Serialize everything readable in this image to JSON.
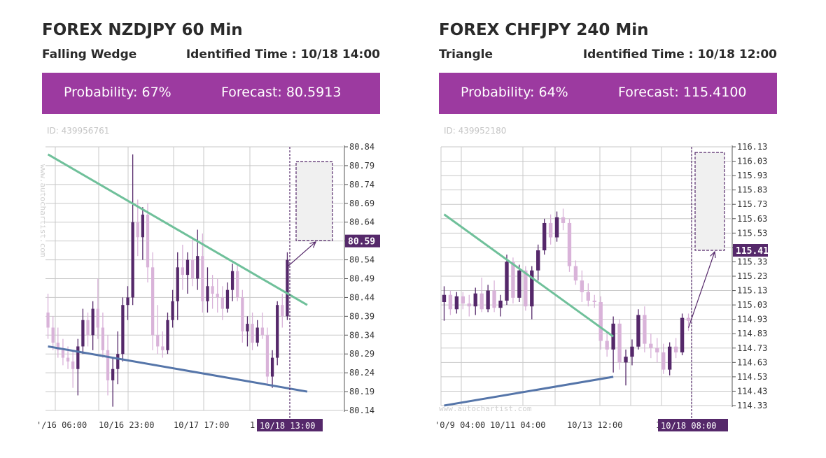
{
  "colors": {
    "banner": "#9c3aa0",
    "candle_up": "#d9b3d9",
    "candle_down": "#55286a",
    "resistance_line": "#6fc09a",
    "support_line": "#5575a9",
    "highlight_label": "#55286a",
    "grid": "#c8c8c8"
  },
  "chart_data": [
    {
      "type": "candlestick",
      "title": "FOREX NZDJPY 60 Min",
      "pattern": "Falling Wedge",
      "identified_time": "Identified Time : 10/18 14:00",
      "probability_label": "Probability: 67%",
      "forecast_label": "Forecast: 80.5913",
      "id_label": "ID: 439956761",
      "watermark": "www.autochartist.com",
      "ylim": [
        80.14,
        80.84
      ],
      "y_ticks": [
        "80.84",
        "80.79",
        "80.74",
        "80.69",
        "80.64",
        "80.59",
        "80.54",
        "80.49",
        "80.44",
        "80.39",
        "80.34",
        "80.29",
        "80.24",
        "80.19",
        "80.14"
      ],
      "highlight_price": "80.59",
      "x_ticks": [
        "'/16 06:00",
        "10/16 23:00",
        "10/17 17:00",
        "1"
      ],
      "highlight_time": "10/18 13:00",
      "forecast_value": 80.5913,
      "resistance_line": [
        [
          0,
          80.82
        ],
        [
          52,
          80.42
        ]
      ],
      "support_line": [
        [
          0,
          80.31
        ],
        [
          52,
          80.19
        ]
      ],
      "candles": [
        {
          "o": 80.4,
          "h": 80.45,
          "l": 80.33,
          "c": 80.36
        },
        {
          "o": 80.36,
          "h": 80.39,
          "l": 80.3,
          "c": 80.32
        },
        {
          "o": 80.32,
          "h": 80.36,
          "l": 80.28,
          "c": 80.3
        },
        {
          "o": 80.3,
          "h": 80.33,
          "l": 80.26,
          "c": 80.28
        },
        {
          "o": 80.28,
          "h": 80.31,
          "l": 80.25,
          "c": 80.27
        },
        {
          "o": 80.27,
          "h": 80.3,
          "l": 80.2,
          "c": 80.25
        },
        {
          "o": 80.25,
          "h": 80.33,
          "l": 80.18,
          "c": 80.31
        },
        {
          "o": 80.31,
          "h": 80.41,
          "l": 80.29,
          "c": 80.38
        },
        {
          "o": 80.38,
          "h": 80.4,
          "l": 80.31,
          "c": 80.34
        },
        {
          "o": 80.34,
          "h": 80.43,
          "l": 80.3,
          "c": 80.41
        },
        {
          "o": 80.41,
          "h": 80.49,
          "l": 80.33,
          "c": 80.36
        },
        {
          "o": 80.36,
          "h": 80.4,
          "l": 80.28,
          "c": 80.3
        },
        {
          "o": 80.3,
          "h": 80.34,
          "l": 80.18,
          "c": 80.22
        },
        {
          "o": 80.22,
          "h": 80.28,
          "l": 80.15,
          "c": 80.25
        },
        {
          "o": 80.25,
          "h": 80.35,
          "l": 80.21,
          "c": 80.29
        },
        {
          "o": 80.29,
          "h": 80.44,
          "l": 80.27,
          "c": 80.42
        },
        {
          "o": 80.42,
          "h": 80.47,
          "l": 80.38,
          "c": 80.44
        },
        {
          "o": 80.44,
          "h": 80.82,
          "l": 80.42,
          "c": 80.64
        },
        {
          "o": 80.64,
          "h": 80.7,
          "l": 80.55,
          "c": 80.6
        },
        {
          "o": 80.6,
          "h": 80.68,
          "l": 80.54,
          "c": 80.66
        },
        {
          "o": 80.66,
          "h": 80.69,
          "l": 80.48,
          "c": 80.52
        },
        {
          "o": 80.52,
          "h": 80.56,
          "l": 80.3,
          "c": 80.34
        },
        {
          "o": 80.34,
          "h": 80.42,
          "l": 80.29,
          "c": 80.31
        },
        {
          "o": 80.31,
          "h": 80.35,
          "l": 80.28,
          "c": 80.3
        },
        {
          "o": 80.3,
          "h": 80.4,
          "l": 80.29,
          "c": 80.38
        },
        {
          "o": 80.38,
          "h": 80.46,
          "l": 80.36,
          "c": 80.43
        },
        {
          "o": 80.43,
          "h": 80.56,
          "l": 80.38,
          "c": 80.52
        },
        {
          "o": 80.52,
          "h": 80.58,
          "l": 80.46,
          "c": 80.5
        },
        {
          "o": 80.5,
          "h": 80.56,
          "l": 80.45,
          "c": 80.54
        },
        {
          "o": 80.54,
          "h": 80.6,
          "l": 80.47,
          "c": 80.49
        },
        {
          "o": 80.49,
          "h": 80.62,
          "l": 80.46,
          "c": 80.55
        },
        {
          "o": 80.55,
          "h": 80.61,
          "l": 80.4,
          "c": 80.43
        },
        {
          "o": 80.43,
          "h": 80.52,
          "l": 80.4,
          "c": 80.47
        },
        {
          "o": 80.47,
          "h": 80.5,
          "l": 80.41,
          "c": 80.45
        },
        {
          "o": 80.45,
          "h": 80.49,
          "l": 80.4,
          "c": 80.44
        },
        {
          "o": 80.44,
          "h": 80.47,
          "l": 80.38,
          "c": 80.41
        },
        {
          "o": 80.41,
          "h": 80.48,
          "l": 80.4,
          "c": 80.46
        },
        {
          "o": 80.46,
          "h": 80.53,
          "l": 80.43,
          "c": 80.51
        },
        {
          "o": 80.51,
          "h": 80.53,
          "l": 80.43,
          "c": 80.44
        },
        {
          "o": 80.44,
          "h": 80.46,
          "l": 80.32,
          "c": 80.35
        },
        {
          "o": 80.35,
          "h": 80.39,
          "l": 80.31,
          "c": 80.37
        },
        {
          "o": 80.37,
          "h": 80.4,
          "l": 80.3,
          "c": 80.32
        },
        {
          "o": 80.32,
          "h": 80.38,
          "l": 80.31,
          "c": 80.36
        },
        {
          "o": 80.36,
          "h": 80.4,
          "l": 80.33,
          "c": 80.34
        },
        {
          "o": 80.34,
          "h": 80.36,
          "l": 80.21,
          "c": 80.23
        },
        {
          "o": 80.23,
          "h": 80.3,
          "l": 80.2,
          "c": 80.28
        },
        {
          "o": 80.28,
          "h": 80.43,
          "l": 80.26,
          "c": 80.42
        },
        {
          "o": 80.42,
          "h": 80.45,
          "l": 80.36,
          "c": 80.39
        },
        {
          "o": 80.39,
          "h": 80.56,
          "l": 80.38,
          "c": 80.54
        }
      ]
    },
    {
      "type": "candlestick",
      "title": "FOREX CHFJPY 240 Min",
      "pattern": "Triangle",
      "identified_time": "Identified Time : 10/18 12:00",
      "probability_label": "Probability: 64%",
      "forecast_label": "Forecast: 115.4100",
      "id_label": "ID: 439952180",
      "watermark": "www.autochartist.com",
      "ylim": [
        114.33,
        116.13
      ],
      "y_ticks": [
        "116.13",
        "116.03",
        "115.93",
        "115.83",
        "115.73",
        "115.63",
        "115.53",
        "115.43",
        "115.33",
        "115.23",
        "115.13",
        "115.03",
        "114.93",
        "114.83",
        "114.73",
        "114.63",
        "114.53",
        "114.43",
        "114.33"
      ],
      "highlight_price": "115.41",
      "x_ticks": [
        "'0/9 04:00",
        "10/11 04:00",
        "10/13 12:00",
        "1"
      ],
      "highlight_time": "10/18 08:00",
      "forecast_value": 115.41,
      "resistance_line": [
        [
          0,
          115.66
        ],
        [
          27,
          114.81
        ]
      ],
      "support_line": [
        [
          0,
          114.33
        ],
        [
          27,
          114.53
        ]
      ],
      "candles": [
        {
          "o": 115.05,
          "h": 115.16,
          "l": 114.92,
          "c": 115.1
        },
        {
          "o": 115.1,
          "h": 115.13,
          "l": 114.96,
          "c": 115.0
        },
        {
          "o": 115.0,
          "h": 115.12,
          "l": 114.97,
          "c": 115.09
        },
        {
          "o": 115.09,
          "h": 115.12,
          "l": 115.0,
          "c": 115.04
        },
        {
          "o": 115.04,
          "h": 115.1,
          "l": 114.95,
          "c": 115.02
        },
        {
          "o": 115.02,
          "h": 115.15,
          "l": 114.96,
          "c": 115.11
        },
        {
          "o": 115.11,
          "h": 115.22,
          "l": 114.98,
          "c": 115.0
        },
        {
          "o": 115.0,
          "h": 115.17,
          "l": 114.98,
          "c": 115.13
        },
        {
          "o": 115.13,
          "h": 115.2,
          "l": 114.98,
          "c": 115.01
        },
        {
          "o": 115.01,
          "h": 115.1,
          "l": 114.95,
          "c": 115.06
        },
        {
          "o": 115.06,
          "h": 115.38,
          "l": 115.03,
          "c": 115.33
        },
        {
          "o": 115.33,
          "h": 115.36,
          "l": 115.04,
          "c": 115.08
        },
        {
          "o": 115.08,
          "h": 115.31,
          "l": 115.05,
          "c": 115.27
        },
        {
          "o": 115.27,
          "h": 115.3,
          "l": 114.99,
          "c": 115.02
        },
        {
          "o": 115.02,
          "h": 115.3,
          "l": 114.93,
          "c": 115.27
        },
        {
          "o": 115.27,
          "h": 115.45,
          "l": 115.2,
          "c": 115.41
        },
        {
          "o": 115.41,
          "h": 115.63,
          "l": 115.38,
          "c": 115.6
        },
        {
          "o": 115.6,
          "h": 115.66,
          "l": 115.45,
          "c": 115.5
        },
        {
          "o": 115.5,
          "h": 115.68,
          "l": 115.47,
          "c": 115.64
        },
        {
          "o": 115.64,
          "h": 115.7,
          "l": 115.55,
          "c": 115.6
        },
        {
          "o": 115.6,
          "h": 115.63,
          "l": 115.26,
          "c": 115.3
        },
        {
          "o": 115.3,
          "h": 115.34,
          "l": 115.17,
          "c": 115.2
        },
        {
          "o": 115.2,
          "h": 115.27,
          "l": 115.05,
          "c": 115.12
        },
        {
          "o": 115.12,
          "h": 115.18,
          "l": 115.02,
          "c": 115.06
        },
        {
          "o": 115.06,
          "h": 115.1,
          "l": 115.01,
          "c": 115.05
        },
        {
          "o": 115.05,
          "h": 115.09,
          "l": 114.72,
          "c": 114.78
        },
        {
          "o": 114.78,
          "h": 114.84,
          "l": 114.67,
          "c": 114.72
        },
        {
          "o": 114.72,
          "h": 114.95,
          "l": 114.56,
          "c": 114.9
        },
        {
          "o": 114.9,
          "h": 114.93,
          "l": 114.58,
          "c": 114.63
        },
        {
          "o": 114.63,
          "h": 114.72,
          "l": 114.47,
          "c": 114.67
        },
        {
          "o": 114.67,
          "h": 114.79,
          "l": 114.61,
          "c": 114.74
        },
        {
          "o": 114.74,
          "h": 115.0,
          "l": 114.72,
          "c": 114.96
        },
        {
          "o": 114.96,
          "h": 115.02,
          "l": 114.7,
          "c": 114.76
        },
        {
          "o": 114.76,
          "h": 114.83,
          "l": 114.66,
          "c": 114.73
        },
        {
          "o": 114.73,
          "h": 114.8,
          "l": 114.63,
          "c": 114.7
        },
        {
          "o": 114.7,
          "h": 114.76,
          "l": 114.55,
          "c": 114.58
        },
        {
          "o": 114.58,
          "h": 114.77,
          "l": 114.54,
          "c": 114.74
        },
        {
          "o": 114.74,
          "h": 114.8,
          "l": 114.66,
          "c": 114.7
        },
        {
          "o": 114.7,
          "h": 114.97,
          "l": 114.68,
          "c": 114.94
        },
        {
          "o": 114.94,
          "h": 114.97,
          "l": 114.85,
          "c": 114.92
        }
      ]
    }
  ]
}
